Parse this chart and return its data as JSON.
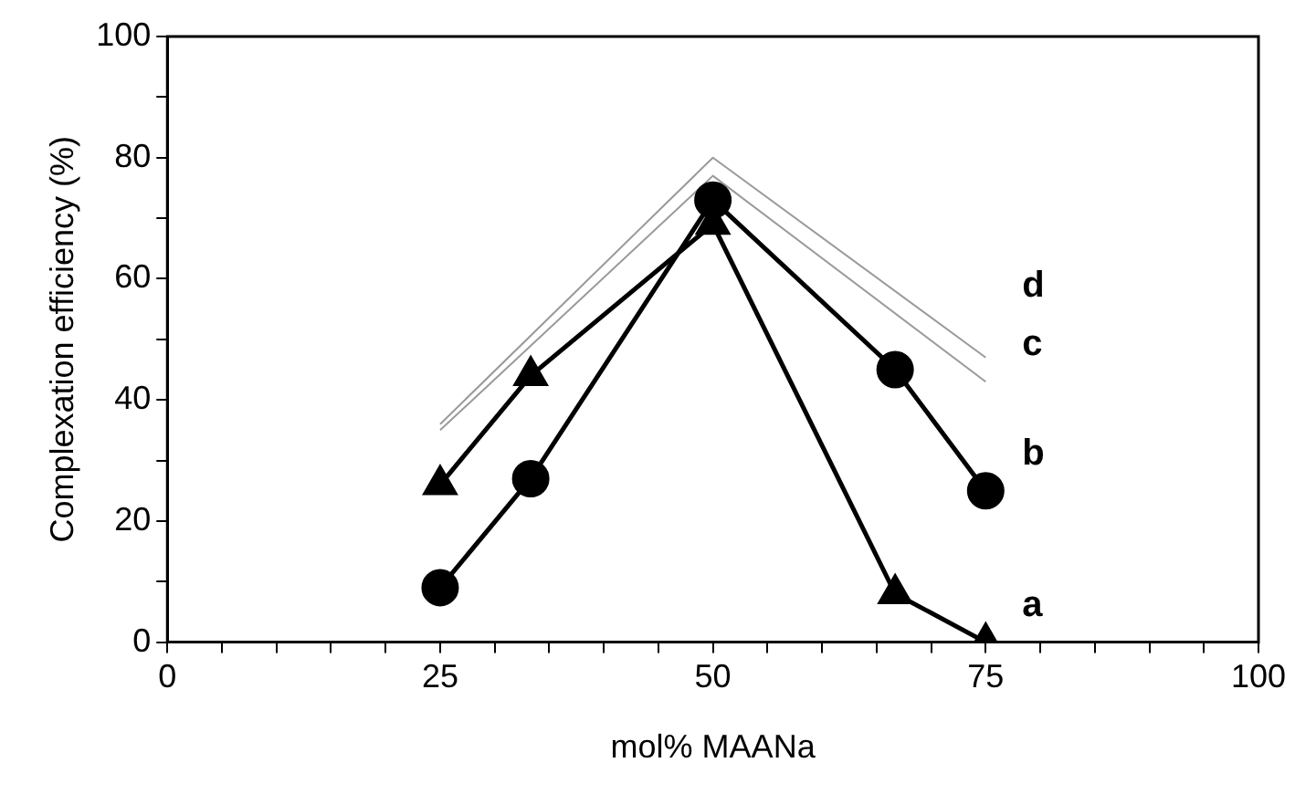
{
  "chart_data": {
    "type": "line",
    "xlabel": "mol% MAANa",
    "ylabel": "Complexation efficiency (%)",
    "xlim": [
      0,
      100
    ],
    "xticks": [
      0,
      {
        "value": 5,
        "label": null
      },
      {
        "value": 10,
        "label": null
      },
      {
        "value": 15,
        "label": null
      },
      {
        "value": 20,
        "label": null
      },
      25,
      {
        "value": 30,
        "label": null
      },
      {
        "value": 35,
        "label": null
      },
      {
        "value": 40,
        "label": null
      },
      {
        "value": 45,
        "label": null
      },
      50,
      {
        "value": 55,
        "label": null
      },
      {
        "value": 60,
        "label": null
      },
      {
        "value": 65,
        "label": null
      },
      {
        "value": 70,
        "label": null
      },
      75,
      {
        "value": 80,
        "label": null
      },
      {
        "value": 85,
        "label": null
      },
      {
        "value": 90,
        "label": null
      },
      {
        "value": 95,
        "label": null
      },
      100
    ],
    "ylim": [
      0,
      100
    ],
    "yticks": [
      0,
      {
        "value": 10,
        "label": null
      },
      20,
      {
        "value": 30,
        "label": null
      },
      40,
      {
        "value": 50,
        "label": null
      },
      60,
      {
        "value": 70,
        "label": null
      },
      80,
      {
        "value": 90,
        "label": null
      },
      100
    ],
    "grid": false,
    "legend": false,
    "series": [
      {
        "name": "a",
        "color": "#000000",
        "marker": "triangle",
        "x": [
          25,
          33.3,
          50,
          66.7,
          75
        ],
        "values": [
          26,
          44,
          69,
          8,
          0
        ]
      },
      {
        "name": "b",
        "color": "#000000",
        "marker": "circle",
        "x": [
          25,
          33.3,
          50,
          66.7,
          75
        ],
        "values": [
          9,
          27,
          73,
          45,
          25
        ]
      },
      {
        "name": "c",
        "color": "#9a9a9a",
        "marker": "none",
        "x": [
          25,
          50,
          75
        ],
        "values": [
          35,
          77,
          43
        ]
      },
      {
        "name": "d",
        "color": "#9a9a9a",
        "marker": "none",
        "x": [
          25,
          50,
          75
        ],
        "values": [
          36,
          80,
          47
        ]
      }
    ]
  }
}
